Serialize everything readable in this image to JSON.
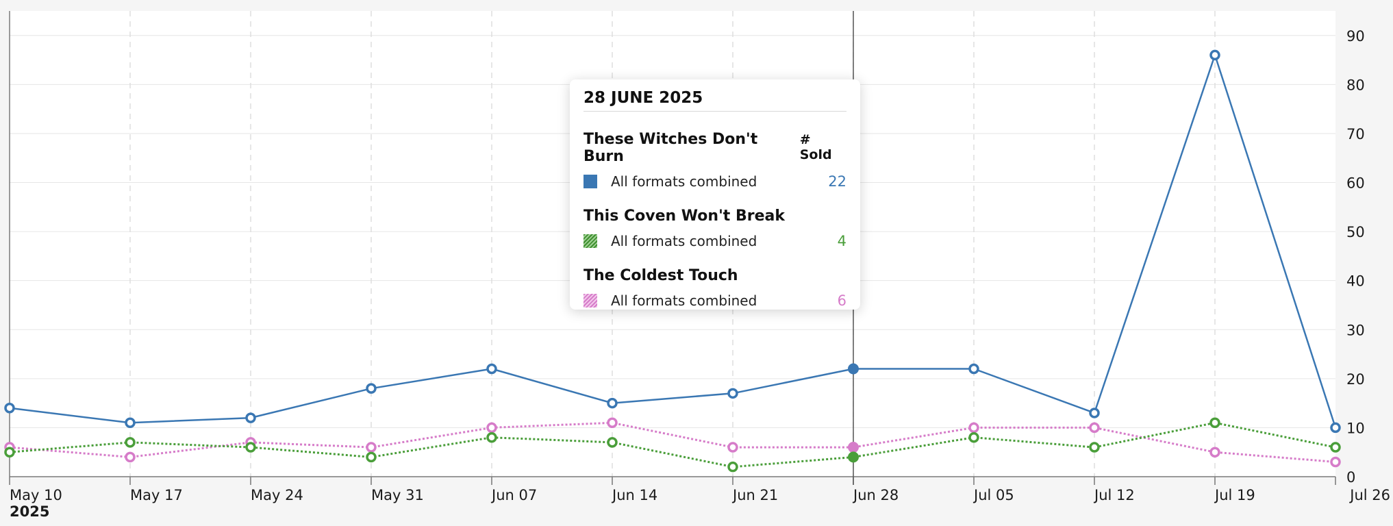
{
  "chart_data": {
    "type": "line",
    "x_labels": [
      "May 10",
      "May 17",
      "May 24",
      "May 31",
      "Jun 07",
      "Jun 14",
      "Jun 21",
      "Jun 28",
      "Jul 05",
      "Jul 12",
      "Jul 19",
      "Jul 26"
    ],
    "year_label": "2025",
    "y_ticks": [
      0,
      10,
      20,
      30,
      40,
      50,
      60,
      70,
      80,
      90
    ],
    "ylim": [
      0,
      95
    ],
    "grid": true,
    "y_axis_side": "right",
    "highlight_index": 7,
    "series": [
      {
        "name": "These Witches Don't Burn",
        "color": "#3a77b3",
        "style": "solid",
        "values": [
          14,
          11,
          12,
          18,
          22,
          15,
          17,
          22,
          22,
          13,
          86,
          10
        ]
      },
      {
        "name": "This Coven Won't Break",
        "color": "#4a9e3a",
        "style": "dotted",
        "values": [
          5,
          7,
          6,
          4,
          8,
          7,
          2,
          4,
          8,
          6,
          11,
          6
        ]
      },
      {
        "name": "The Coldest Touch",
        "color": "#d67cc9",
        "style": "dotted",
        "values": [
          6,
          4,
          7,
          6,
          10,
          11,
          6,
          6,
          10,
          10,
          5,
          3
        ]
      }
    ]
  },
  "tooltip": {
    "date": "28 JUNE 2025",
    "column_header": "# Sold",
    "rows": [
      {
        "book": "These Witches Don't Burn",
        "format": "All formats combined",
        "value": "22",
        "color": "#3a77b3",
        "swatch": "solid"
      },
      {
        "book": "This Coven Won't Break",
        "format": "All formats combined",
        "value": "4",
        "color": "#4a9e3a",
        "swatch": "hatched"
      },
      {
        "book": "The Coldest Touch",
        "format": "All formats combined",
        "value": "6",
        "color": "#d67cc9",
        "swatch": "hatched"
      }
    ]
  }
}
